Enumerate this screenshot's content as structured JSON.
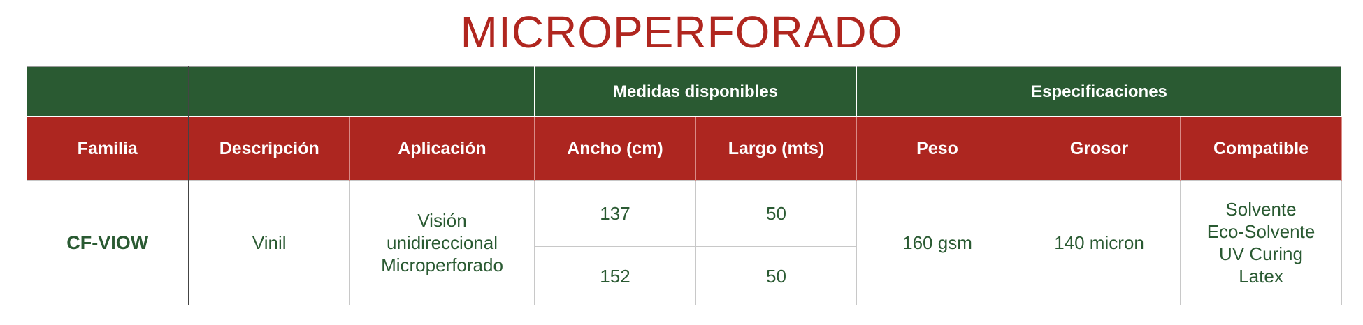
{
  "title": "MICROPERFORADO",
  "colors": {
    "title": "#b0261f",
    "group_header_bg": "#2a5a32",
    "column_header_bg": "#ad2620",
    "body_text": "#2a5a32"
  },
  "group_headers": {
    "medidas": "Medidas disponibles",
    "especificaciones": "Especificaciones"
  },
  "columns": [
    "Familia",
    "Descripción",
    "Aplicación",
    "Ancho (cm)",
    "Largo (mts)",
    "Peso",
    "Grosor",
    "Compatible"
  ],
  "row": {
    "familia": "CF-VIOW",
    "descripcion": "Vinil",
    "aplicacion": [
      "Visión",
      "unidireccional",
      "Microperforado"
    ],
    "medidas": [
      {
        "ancho": "137",
        "largo": "50"
      },
      {
        "ancho": "152",
        "largo": "50"
      }
    ],
    "peso": "160 gsm",
    "grosor": "140 micron",
    "compatible": [
      "Solvente",
      "Eco-Solvente",
      "UV Curing",
      "Latex"
    ]
  }
}
